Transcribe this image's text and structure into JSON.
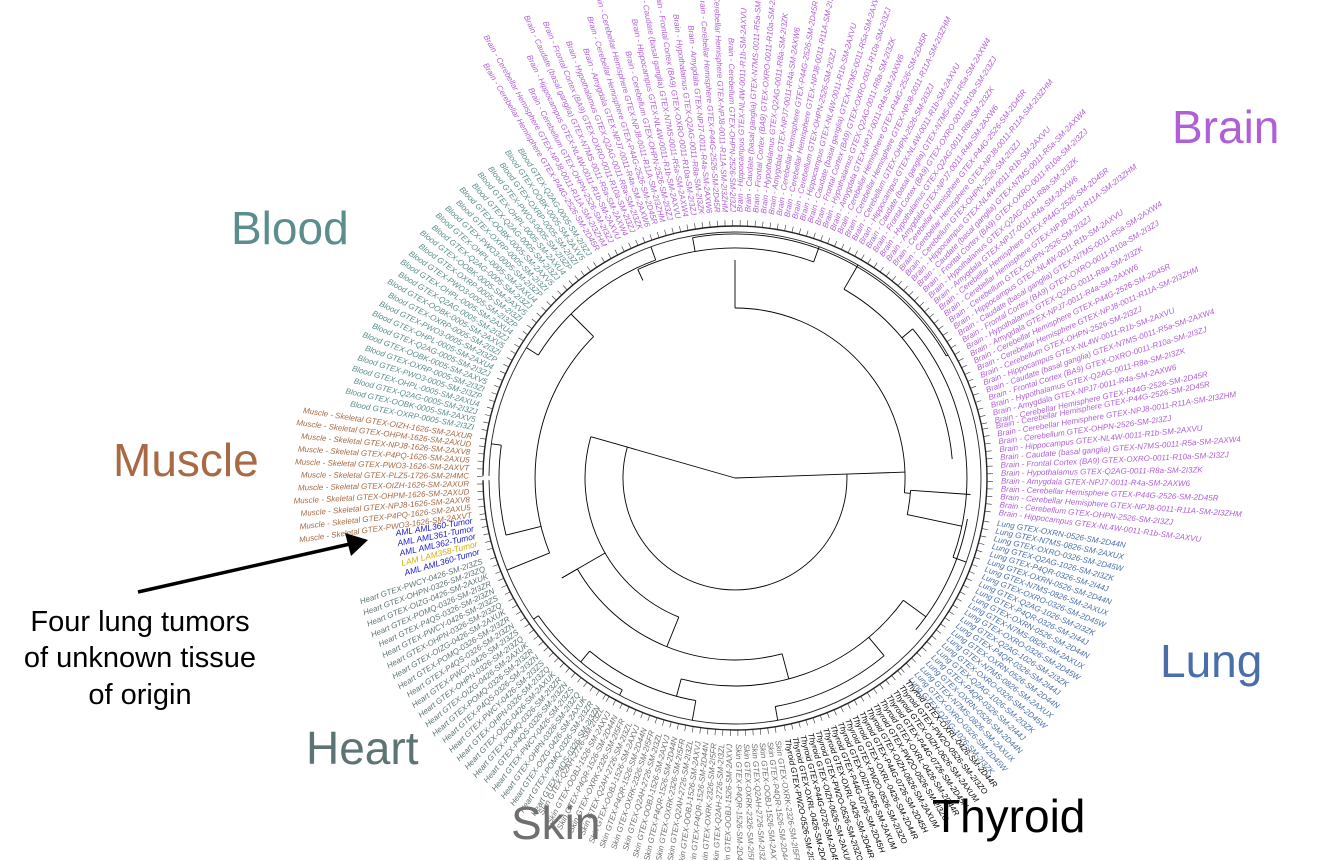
{
  "colors": {
    "brain": "#b05fd6",
    "blood": "#5b8d8d",
    "muscle": "#a86a45",
    "heart": "#5d7474",
    "skin": "#6f6f6f",
    "thyroid": "#000000",
    "lung": "#4a6fa8",
    "tumor_blue": "#1a1acc",
    "tumor_yellow": "#d4b000",
    "tree": "#000000"
  },
  "tissue_labels": {
    "brain": "Brain",
    "blood": "Blood",
    "muscle": "Muscle",
    "heart": "Heart",
    "skin": "Skin",
    "thyroid": "Thyroid",
    "lung": "Lung"
  },
  "annotation": {
    "lines": [
      "Four lung tumors",
      "of unknown tissue",
      "of origin"
    ]
  },
  "leaf_labels": {
    "brain": [
      "Brain - Cerebellar Hemisphere GTEX-P44G-2526-SM-2D45R",
      "Brain - Cerebellar Hemisphere GTEX-NPJ8-0011-R11A-SM-2I3ZHM",
      "Brain - Cerebellum GTEX-OHPN-2526-SM-2I3ZJ",
      "Brain - Hippocampus GTEX-NL4W-0011-R1b-SM-2AXVU",
      "Brain - Caudate (basal ganglia) GTEX-N7MS-0011-R5a-SM-2AXW4",
      "Brain - Frontal Cortex (BA9) GTEX-OXRO-0011-R10a-SM-2I3ZJ",
      "Brain - Hypothalamus GTEX-Q2AG-0011-R8a-SM-2I3ZK",
      "Brain - Amygdala GTEX-NPJ7-0011-R4a-SM-2AXW6"
    ],
    "blood": [
      "Blood GTEX-OXRP-0005-SM-2I3ZI",
      "Blood GTEX-OOBK-0005-SM-2AXV5",
      "Blood GTEX-Q2AG-0005-SM-2I3ZJ",
      "Blood GTEX-OHPL-0005-SM-2AXU4",
      "Blood GTEX-PWO3-0005-SM-2I3ZP"
    ],
    "muscle": [
      "Muscle - Skeletal GTEX-PWO3-1626-SM-2AXVT",
      "Muscle - Skeletal GTEX-P4PQ-1626-SM-2AXU5",
      "Muscle - Skeletal GTEX-NPJ8-1626-SM-2AXV8",
      "Muscle - Skeletal GTEX-OHPM-1626-SM-2AXUD",
      "Muscle - Skeletal GTEX-OIZH-1626-SM-2AXUR",
      "Muscle - Skeletal GTEX-PLZ5-1726-SM-2I4MC"
    ],
    "tumors": [
      "AML AML360-Tumor",
      "LAM LAM358-Tumor",
      "AML AML362-Tumor",
      "AML AML361-Tumor"
    ],
    "heart": [
      "Heart GTEX-P4QS-0326-SM-2I3ZN",
      "Heart GTEX-POMQ-0326-SM-2I3ZR",
      "Heart GTEX-OIZG-0426-SM-2AXUK",
      "Heart GTEX-OHPN-0326-SM-2I3ZQ",
      "Heart GTEX-PWCY-0426-SM-2I3ZS"
    ],
    "skin": [
      "Skin GTEX-OXRK-2326-SM-2I5FR",
      "Skin GTEX-P4QR-1526-SM-2D44N",
      "Skin GTEX-OOBJ-1526-SM-2AXVJ",
      "Skin GTEX-Q2AH-2726-SM-2I3ZL"
    ],
    "thyroid": [
      "Thyroid GTEX-OXRL-0426-SM-2D44R",
      "Thyroid GTEX-PW2O-0526-SM-2I3ZO",
      "Thyroid GTEX-OIZH-0626-SM-2AXUM",
      "Thyroid GTEX-P44G-0726-SM-2D45H"
    ],
    "lung": [
      "Lung GTEX-OXRN-0526-SM-2D44N",
      "Lung GTEX-N7MS-0826-SM-2AXUX",
      "Lung GTEX-OXRO-0326-SM-2D45W",
      "Lung GTEX-Q2AG-1026-SM-2I3ZK",
      "Lung GTEX-P4QR-0326-SM-2I44J"
    ]
  }
}
